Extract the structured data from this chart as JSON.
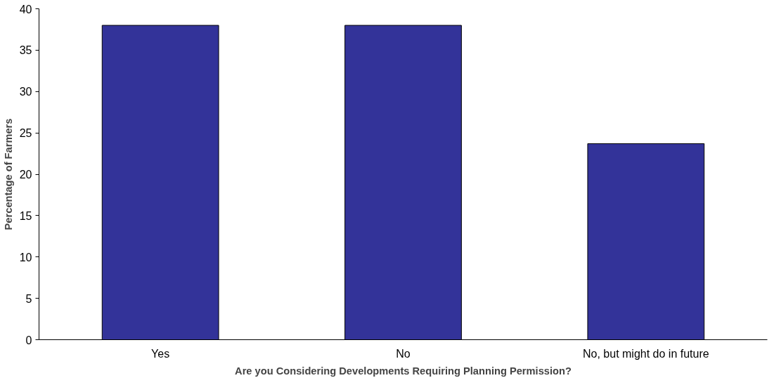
{
  "chart_data": {
    "type": "bar",
    "xlabel": "Are you Considering Developments Requiring Planning Permission?",
    "ylabel": "Percentage of Farmers",
    "categories": [
      "Yes",
      "No",
      "No, but might do in future"
    ],
    "values": [
      38.0,
      38.0,
      23.7
    ],
    "color": "#333399",
    "ylim": [
      0,
      40
    ],
    "yticks": [
      0,
      5,
      10,
      15,
      20,
      25,
      30,
      35,
      40
    ],
    "grid": false
  }
}
